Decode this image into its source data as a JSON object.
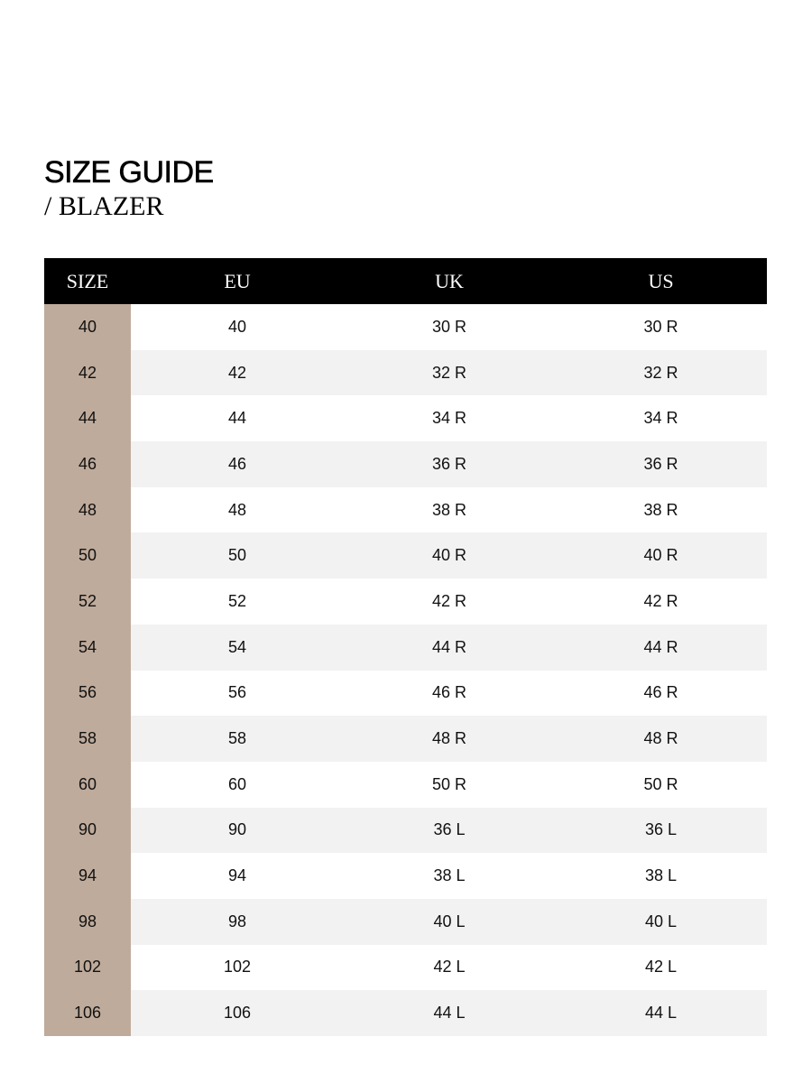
{
  "title": "SIZE GUIDE",
  "subtitle": "/ BLAZER",
  "colors": {
    "header_bg": "#000000",
    "size_column_bg": "#bfab9b",
    "alt_row_bg": "#f2f2f2"
  },
  "table": {
    "headers": [
      "SIZE",
      "EU",
      "UK",
      "US"
    ],
    "rows": [
      [
        "40",
        "40",
        "30 R",
        "30 R"
      ],
      [
        "42",
        "42",
        "32 R",
        "32 R"
      ],
      [
        "44",
        "44",
        "34 R",
        "34 R"
      ],
      [
        "46",
        "46",
        "36 R",
        "36 R"
      ],
      [
        "48",
        "48",
        "38 R",
        "38 R"
      ],
      [
        "50",
        "50",
        "40 R",
        "40 R"
      ],
      [
        "52",
        "52",
        "42 R",
        "42 R"
      ],
      [
        "54",
        "54",
        "44 R",
        "44 R"
      ],
      [
        "56",
        "56",
        "46 R",
        "46 R"
      ],
      [
        "58",
        "58",
        "48 R",
        "48 R"
      ],
      [
        "60",
        "60",
        "50 R",
        "50 R"
      ],
      [
        "90",
        "90",
        "36 L",
        "36 L"
      ],
      [
        "94",
        "94",
        "38 L",
        "38 L"
      ],
      [
        "98",
        "98",
        "40 L",
        "40 L"
      ],
      [
        "102",
        "102",
        "42 L",
        "42 L"
      ],
      [
        "106",
        "106",
        "44 L",
        "44 L"
      ]
    ]
  }
}
